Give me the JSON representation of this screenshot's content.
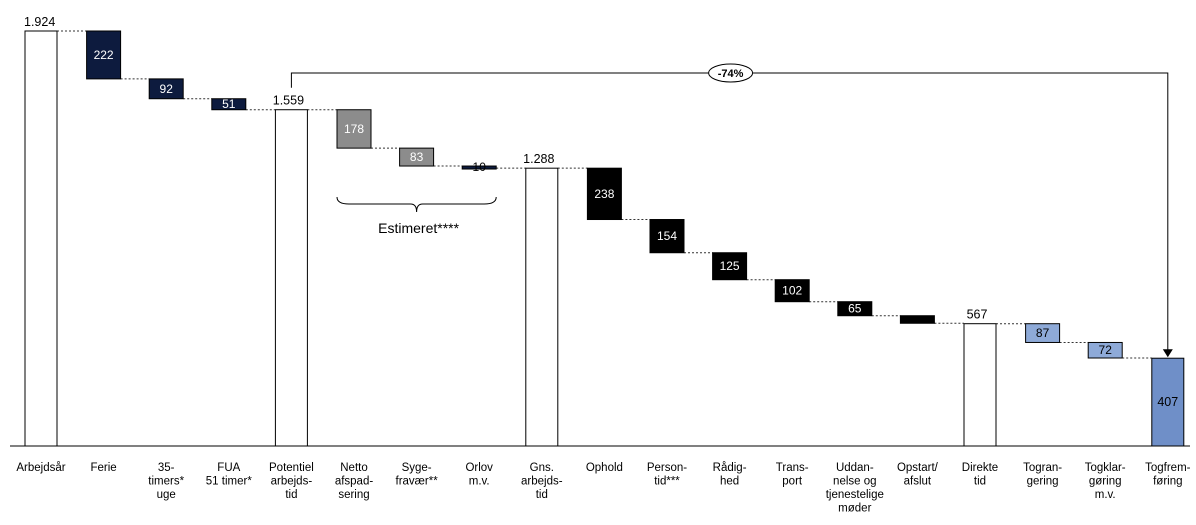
{
  "chart_data": {
    "type": "bar",
    "subtype": "waterfall",
    "title": "",
    "xlabel": "",
    "ylabel": "",
    "ylim": [
      0,
      1924
    ],
    "grid": false,
    "legend": "none",
    "categories": [
      "Arbejdsår",
      "Ferie",
      "35-timers* uge",
      "FUA 51 timer*",
      "Potentiel arbejdstid",
      "Netto afspadsering",
      "Sygefravær**",
      "Orlov m.v.",
      "Gns. arbejdstid",
      "Ophold",
      "Persontid***",
      "Rådighed",
      "Transport",
      "Uddannelse og tjenestelige møder",
      "Opstart/afslut",
      "Direkte tid",
      "Tograngering",
      "Togklargøring m.v.",
      "Togfremføring"
    ],
    "points": [
      {
        "label_lines": [
          "Arbejdsår"
        ],
        "kind": "total",
        "value": 1924,
        "value_text": "1.924",
        "color": "#ffffff"
      },
      {
        "label_lines": [
          "Ferie"
        ],
        "kind": "decrease",
        "value": 222,
        "value_text": "222",
        "color": "#0d1b3e"
      },
      {
        "label_lines": [
          "35-",
          "timers*",
          "uge"
        ],
        "kind": "decrease",
        "value": 92,
        "value_text": "92",
        "color": "#0d1b3e"
      },
      {
        "label_lines": [
          "FUA",
          "51 timer*"
        ],
        "kind": "decrease",
        "value": 51,
        "value_text": "51",
        "color": "#0d1b3e"
      },
      {
        "label_lines": [
          "Potentiel",
          "arbejds-",
          "tid"
        ],
        "kind": "total",
        "value": 1559,
        "value_text": "1.559",
        "color": "#ffffff"
      },
      {
        "label_lines": [
          "Netto",
          "afspad-",
          "sering"
        ],
        "kind": "decrease",
        "value": 178,
        "value_text": "178",
        "color": "#8c8c8c"
      },
      {
        "label_lines": [
          "Syge-",
          "fravær**"
        ],
        "kind": "decrease",
        "value": 83,
        "value_text": "83",
        "color": "#8c8c8c"
      },
      {
        "label_lines": [
          "Orlov",
          "m.v."
        ],
        "kind": "decrease",
        "value": 10,
        "value_text": "10",
        "color": "#0d1b3e"
      },
      {
        "label_lines": [
          "Gns.",
          "arbejds-",
          "tid"
        ],
        "kind": "total",
        "value": 1288,
        "value_text": "1.288",
        "color": "#ffffff"
      },
      {
        "label_lines": [
          "Ophold"
        ],
        "kind": "decrease",
        "value": 238,
        "value_text": "238",
        "color": "#000000"
      },
      {
        "label_lines": [
          "Person-",
          "tid***"
        ],
        "kind": "decrease",
        "value": 154,
        "value_text": "154",
        "color": "#000000"
      },
      {
        "label_lines": [
          "Rådig-",
          "hed"
        ],
        "kind": "decrease",
        "value": 125,
        "value_text": "125",
        "color": "#000000"
      },
      {
        "label_lines": [
          "Trans-",
          "port"
        ],
        "kind": "decrease",
        "value": 102,
        "value_text": "102",
        "color": "#000000"
      },
      {
        "label_lines": [
          "Uddan-",
          "nelse og",
          "tjenestelige",
          "møder"
        ],
        "kind": "decrease",
        "value": 65,
        "value_text": "65",
        "color": "#000000"
      },
      {
        "label_lines": [
          "Opstart/",
          "afslut"
        ],
        "kind": "decrease",
        "value": 35,
        "value_text": "",
        "color": "#000000"
      },
      {
        "label_lines": [
          "Direkte",
          "tid"
        ],
        "kind": "total",
        "value": 567,
        "value_text": "567",
        "color": "#ffffff"
      },
      {
        "label_lines": [
          "Togran-",
          "gering"
        ],
        "kind": "decrease",
        "value": 87,
        "value_text": "87",
        "color": "#8eaad8"
      },
      {
        "label_lines": [
          "Togklar-",
          "gøring",
          "m.v."
        ],
        "kind": "decrease",
        "value": 72,
        "value_text": "72",
        "color": "#8eaad8"
      },
      {
        "label_lines": [
          "Togfrem-",
          "føring"
        ],
        "kind": "total",
        "value": 407,
        "value_text": "407",
        "color": "#6f8fc8"
      }
    ],
    "annotations": [
      {
        "text": "Estimeret****",
        "type": "brace",
        "span": [
          "Netto afspadsering",
          "Orlov m.v."
        ]
      },
      {
        "text": "-74%",
        "type": "arrow",
        "from": "Potentiel arbejdstid",
        "to": "Togfremføring"
      }
    ]
  }
}
